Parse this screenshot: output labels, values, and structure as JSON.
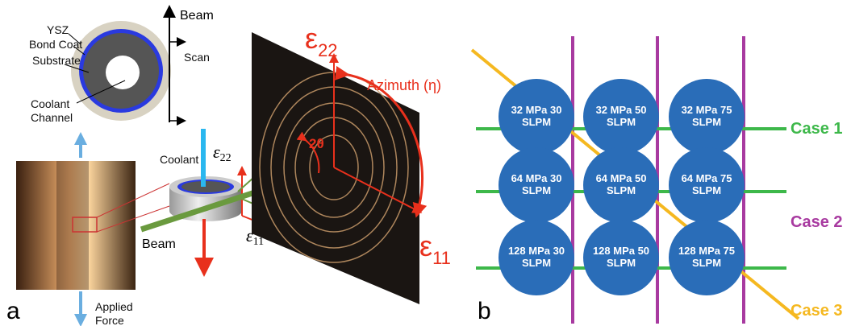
{
  "panel_a": {
    "label": "a",
    "cross_section": {
      "ysz": "YSZ",
      "bond_coat": "Bond Coat",
      "substrate": "Substrate",
      "coolant_channel": [
        "Coolant",
        "Channel"
      ],
      "beam": "Beam",
      "scan": "Scan"
    },
    "specimen": {
      "coolant": "Coolant",
      "e22_symbol": "ε",
      "e22_sub": "22",
      "e11_symbol": "ε",
      "e11_sub": "11",
      "beam": "Beam",
      "applied_force": [
        "Applied",
        "Force"
      ]
    },
    "detector": {
      "e22_symbol": "ε",
      "e22_sub": "22",
      "e11_symbol": "ε",
      "e11_sub": "11",
      "azimuth": "Azimuth (η)",
      "two_theta": "2θ"
    }
  },
  "panel_b": {
    "label": "b",
    "nodes": [
      {
        "lines": [
          "32 MPa 30",
          "SLPM"
        ]
      },
      {
        "lines": [
          "32 MPa 50",
          "SLPM"
        ]
      },
      {
        "lines": [
          "32 MPa 75",
          "SLPM"
        ]
      },
      {
        "lines": [
          "64 MPa 30",
          "SLPM"
        ]
      },
      {
        "lines": [
          "64 MPa 50",
          "SLPM"
        ]
      },
      {
        "lines": [
          "64 MPa 75",
          "SLPM"
        ]
      },
      {
        "lines": [
          "128 MPa 30",
          "SLPM"
        ]
      },
      {
        "lines": [
          "128 MPa 50",
          "SLPM"
        ]
      },
      {
        "lines": [
          "128 MPa 75",
          "SLPM"
        ]
      }
    ],
    "cases": [
      "Case 1",
      "Case 2",
      "Case 3"
    ]
  }
}
